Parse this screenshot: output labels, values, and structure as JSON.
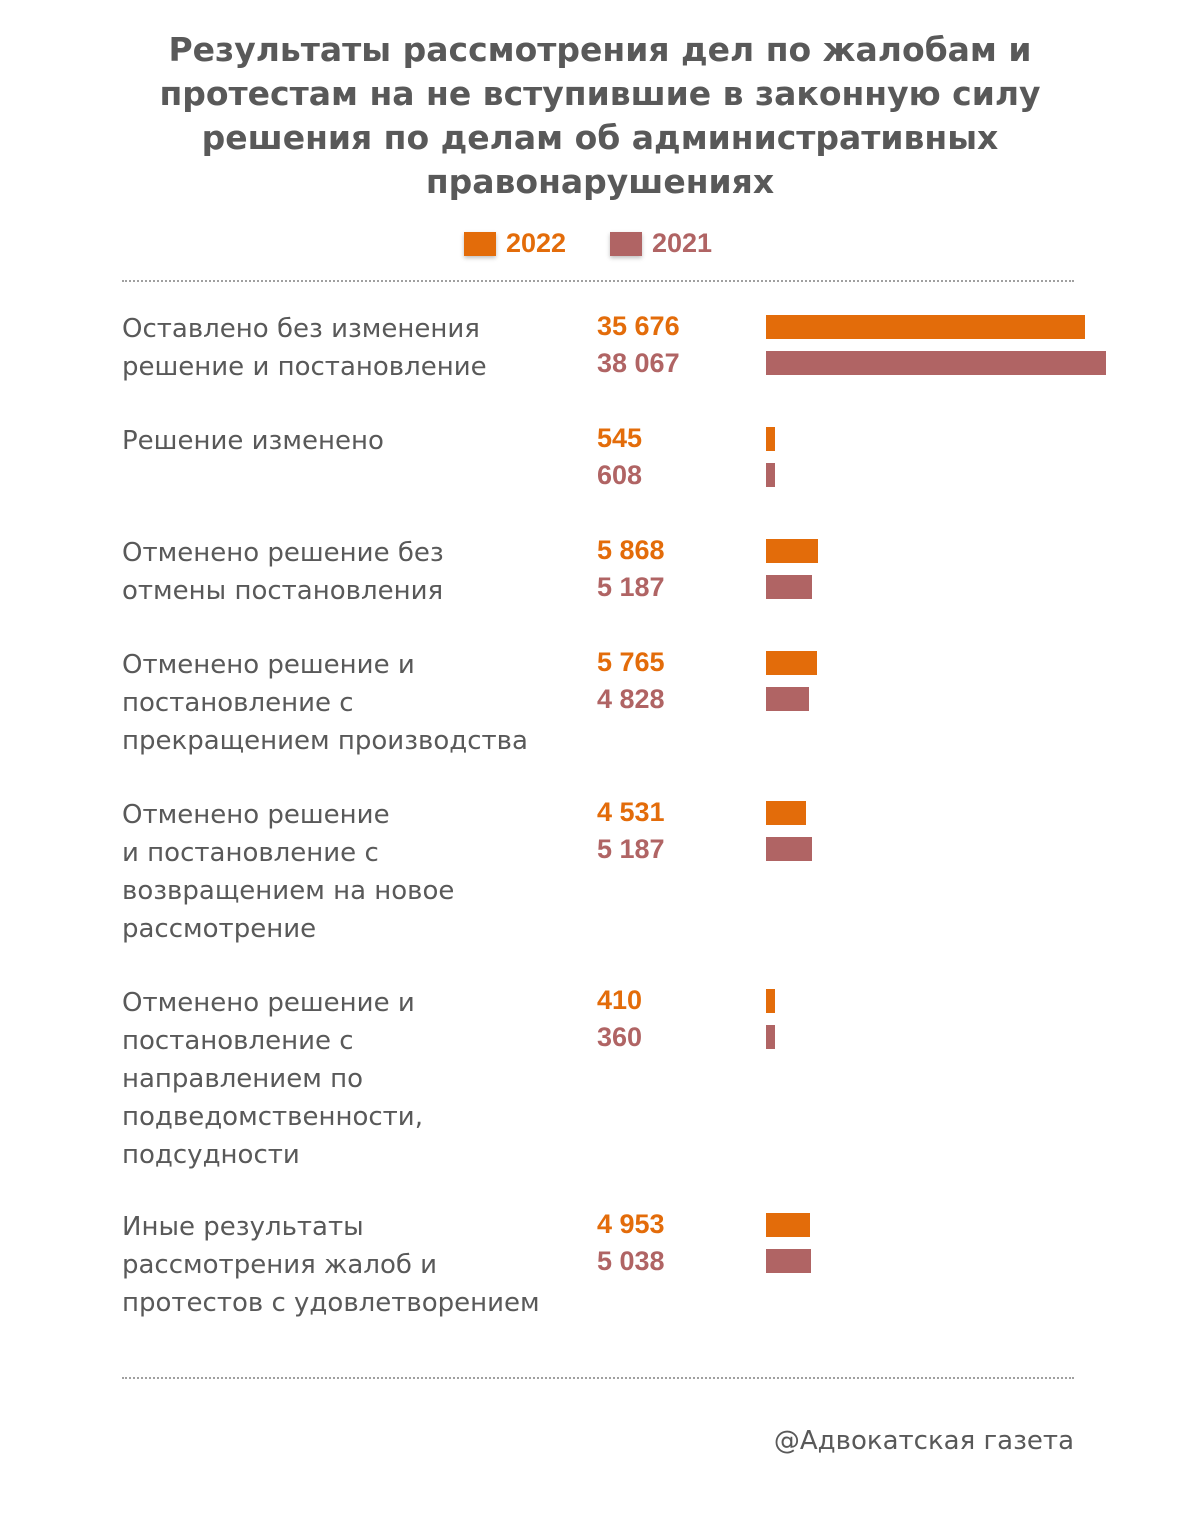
{
  "colors": {
    "y2022": "#e36c0a",
    "y2021": "#b06464"
  },
  "chart_data": {
    "type": "bar",
    "orientation": "horizontal",
    "title": "Результаты рассмотрения дел по жалобам и\nпротестам на не вступившие в законную силу\nрешения по делам об административных\nправонарушениях",
    "legend": [
      "2022",
      "2021"
    ],
    "categories": [
      "Оставлено без изменения\nрешение и постановление",
      "Решение изменено",
      "Отменено решение без\nотмены постановления",
      "Отменено решение и\nпостановление с\nпрекращением производства",
      "Отменено решение\nи постановление с\nвозвращением на новое\nрассмотрение",
      "Отменено решение и\nпостановление с\nнаправлением по\nподведомственности,\nподсудности",
      "Иные результаты\nрассмотрения жалоб и\nпротестов с удовлетворением"
    ],
    "series": [
      {
        "name": "2022",
        "values": [
          35676,
          545,
          5868,
          5765,
          4531,
          410,
          4953
        ],
        "labels": [
          "35 676",
          "545",
          "5 868",
          "5 765",
          "4 531",
          "410",
          "4 953"
        ]
      },
      {
        "name": "2021",
        "values": [
          38067,
          608,
          5187,
          4828,
          5187,
          360,
          5038
        ],
        "labels": [
          "38 067",
          "608",
          "5 187",
          "4 828",
          "5 187",
          "360",
          "5 038"
        ]
      }
    ]
  },
  "footer": "@Адвокатская газета"
}
